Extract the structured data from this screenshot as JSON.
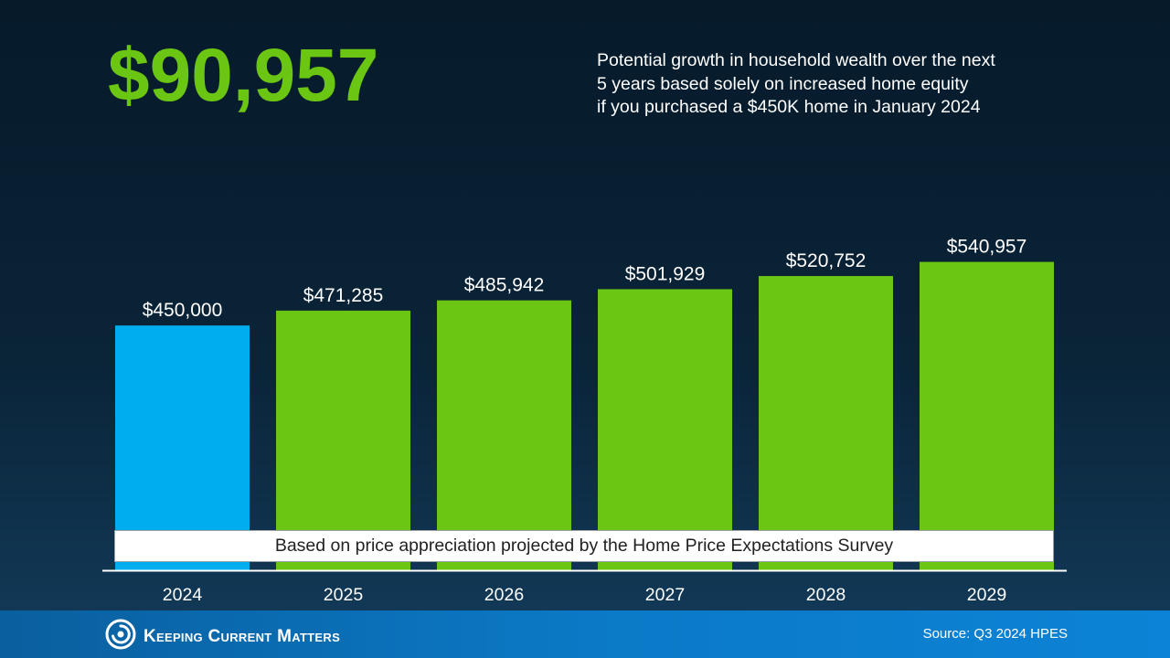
{
  "headline": "$90,957",
  "subtitle_lines": [
    "Potential growth in household wealth over the next",
    "5 years based solely on increased home equity",
    "if you purchased a $450K home in January 2024"
  ],
  "note": "Based on price appreciation projected by the Home Price Expectations Survey",
  "footer": {
    "brand": "Keeping Current Matters",
    "logo_icon": "swirl-logo-icon",
    "source": "Source: Q3 2024 HPES"
  },
  "colors": {
    "headline": "#6bc614",
    "bar_base": "#00aeef",
    "bar_projection": "#6bc614",
    "axis": "#ffffff"
  },
  "chart_data": {
    "type": "bar",
    "categories": [
      "2024",
      "2025",
      "2026",
      "2027",
      "2028",
      "2029"
    ],
    "values": [
      450000,
      471285,
      485942,
      501929,
      520752,
      540957
    ],
    "data_labels": [
      "$450,000",
      "$471,285",
      "$485,942",
      "$501,929",
      "$520,752",
      "$540,957"
    ],
    "bar_colors": [
      "#00aeef",
      "#6bc614",
      "#6bc614",
      "#6bc614",
      "#6bc614",
      "#6bc614"
    ],
    "title": "",
    "xlabel": "",
    "ylabel": "",
    "ylim": [
      0,
      600000
    ],
    "grid": false,
    "legend": "none"
  }
}
